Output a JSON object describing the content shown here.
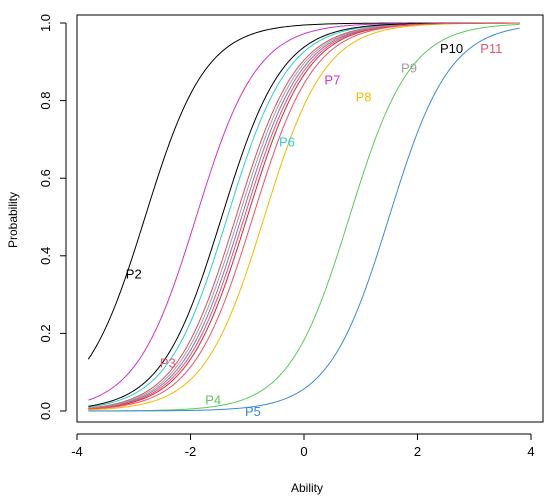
{
  "chart_data": {
    "type": "line",
    "title": "",
    "xlabel": "Ability",
    "ylabel": "Probability",
    "xlim": [
      -3.8,
      3.8
    ],
    "ylim": [
      0.0,
      1.0
    ],
    "xticks": [
      -4,
      -2,
      0,
      2,
      4
    ],
    "xtick_labels": [
      "-4",
      "-2",
      "0",
      "2",
      "4"
    ],
    "yticks": [
      0.0,
      0.2,
      0.4,
      0.6,
      0.8,
      1.0
    ],
    "ytick_labels": [
      "0.0",
      "0.2",
      "0.4",
      "0.6",
      "0.8",
      "1.0"
    ],
    "grid": false,
    "series": [
      {
        "name": "P2",
        "a": 1.1,
        "b": -2.8,
        "color": "#000000",
        "label_at": [
          -3.0,
          0.355
        ]
      },
      {
        "name": "P3",
        "a": 1.1,
        "b": -0.9,
        "color": "#e8536a",
        "label_at": [
          -2.4,
          0.125
        ]
      },
      {
        "name": "P4",
        "a": 1.1,
        "b": 0.8,
        "color": "#5cc95c",
        "label_at": [
          -1.6,
          0.03
        ]
      },
      {
        "name": "P5",
        "a": 1.1,
        "b": 1.5,
        "color": "#3a8ad8",
        "label_at": [
          -0.9,
          0.0
        ]
      },
      {
        "name": "P6",
        "a": 1.1,
        "b": -1.35,
        "color": "#33cccc",
        "label_at": [
          -0.3,
          0.695
        ]
      },
      {
        "name": "P7",
        "a": 1.1,
        "b": -1.9,
        "color": "#cc33cc",
        "label_at": [
          0.5,
          0.855
        ]
      },
      {
        "name": "P8",
        "a": 1.1,
        "b": -0.7,
        "color": "#f5b800",
        "label_at": [
          1.05,
          0.81
        ]
      },
      {
        "name": "P9",
        "a": 1.1,
        "b": -1.15,
        "color": "#a0a0a0",
        "label_at": [
          1.85,
          0.885
        ]
      },
      {
        "name": "P10",
        "a": 1.1,
        "b": -1.45,
        "color": "#000000",
        "label_at": [
          2.6,
          0.935
        ]
      },
      {
        "name": "P11",
        "a": 1.1,
        "b": -1.05,
        "color": "#e8536a",
        "label_at": [
          3.3,
          0.935
        ]
      }
    ],
    "extra_curves": [
      {
        "a": 1.1,
        "b": -1.0,
        "color": "#c03040"
      },
      {
        "a": 1.1,
        "b": -1.1,
        "color": "#9a6aa8"
      },
      {
        "a": 1.1,
        "b": -1.2,
        "color": "#d05060"
      }
    ],
    "x_range_drawn": [
      -3.8,
      3.8
    ]
  }
}
